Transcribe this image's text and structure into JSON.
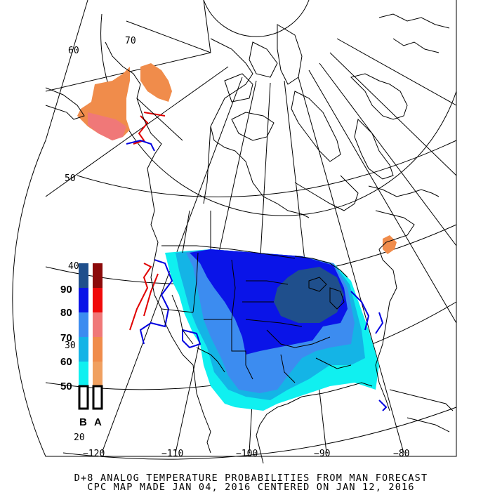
{
  "title": {
    "line1": "D+8 ANALOG TEMPERATURE PROBABILITIES FROM MAN FORECAST",
    "line2": "CPC MAP MADE JAN 04, 2016 CENTERED ON JAN 12, 2016"
  },
  "latitude_labels": {
    "lat60": "60",
    "lat50": "50",
    "lat40": "40",
    "lat30": "30",
    "lat20": "20"
  },
  "longitude_labels": {
    "lon70": "70",
    "lonm120": "−120",
    "lonm110": "−110",
    "lonm100": "−100",
    "lonm90": "−90",
    "lonm80": "−80"
  },
  "legend": {
    "levels": [
      "90",
      "80",
      "70",
      "60",
      "50"
    ],
    "below_label": "B",
    "above_label": "A",
    "below_colors": [
      "#1f4f8c",
      "#0a14e8",
      "#3c8cf0",
      "#14b4e6",
      "#10f0f0"
    ],
    "above_colors": [
      "#8c0a0a",
      "#f00a0a",
      "#f07878",
      "#f08c4b",
      "#f0a060"
    ]
  },
  "colors": {
    "below_strong": "#1f4f8c",
    "below_90": "#0a14e8",
    "below_80": "#3c8cf0",
    "below_70": "#14b4e6",
    "below_60": "#10f0f0",
    "above_60": "#f08c4b",
    "above_70": "#f07878",
    "contour_red": "#e00000",
    "contour_blue": "#0000e0"
  }
}
